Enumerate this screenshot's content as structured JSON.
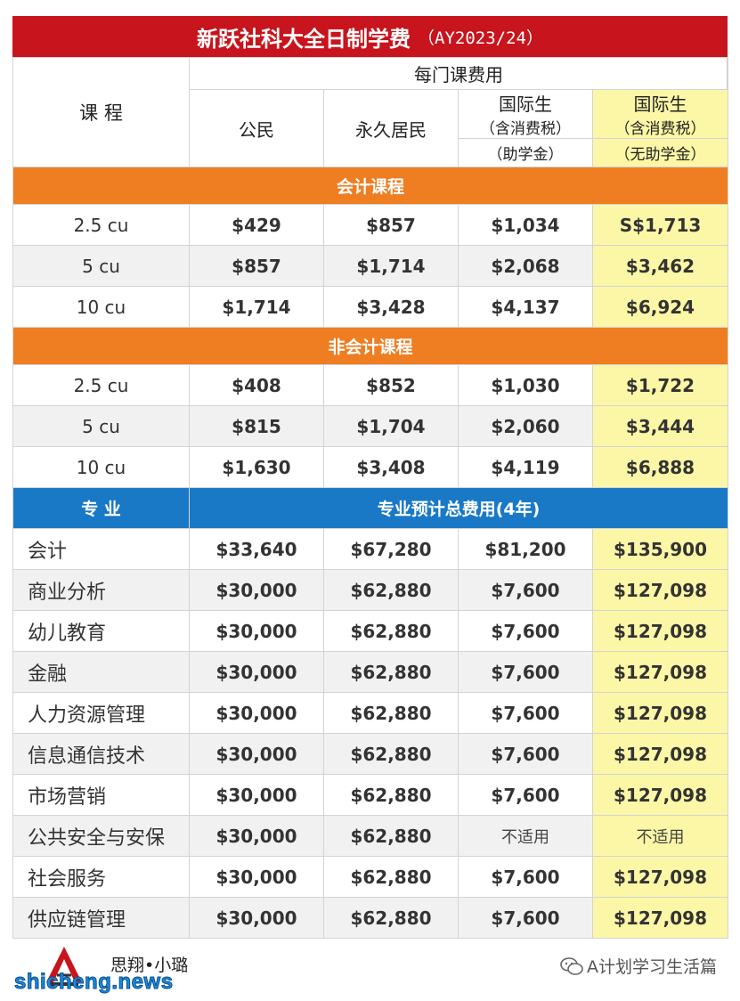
{
  "title": {
    "main": "新跃社科大全日制学费",
    "sub": "（AY2023/24）"
  },
  "header": {
    "course": "课 程",
    "per_course_fee": "每门课费用",
    "citizen": "公民",
    "pr": "永久居民",
    "intl_subsidized": {
      "line1": "国际生",
      "line2": "（含消费税）",
      "line3": "（助学金）"
    },
    "intl_unsubsidized": {
      "line1": "国际生",
      "line2": "（含消费税）",
      "line3": "（无助学金）"
    }
  },
  "accounting": {
    "band": "会计课程",
    "rows": [
      {
        "name": "2.5 cu",
        "citizen": "$429",
        "pr": "$857",
        "intl_sub": "$1,034",
        "intl_unsub": "S$1,713"
      },
      {
        "name": "5 cu",
        "citizen": "$857",
        "pr": "$1,714",
        "intl_sub": "$2,068",
        "intl_unsub": "$3,462"
      },
      {
        "name": "10 cu",
        "citizen": "$1,714",
        "pr": "$3,428",
        "intl_sub": "$4,137",
        "intl_unsub": "$6,924"
      }
    ]
  },
  "non_accounting": {
    "band": "非会计课程",
    "rows": [
      {
        "name": "2.5 cu",
        "citizen": "$408",
        "pr": "$852",
        "intl_sub": "$1,030",
        "intl_unsub": "$1,722"
      },
      {
        "name": "5 cu",
        "citizen": "$815",
        "pr": "$1,704",
        "intl_sub": "$2,060",
        "intl_unsub": "$3,444"
      },
      {
        "name": "10 cu",
        "citizen": "$1,630",
        "pr": "$3,408",
        "intl_sub": "$4,119",
        "intl_unsub": "$6,888"
      }
    ]
  },
  "majors": {
    "label": "专 业",
    "band": "专业预计总费用(4年)",
    "rows": [
      {
        "name": "会计",
        "citizen": "$33,640",
        "pr": "$67,280",
        "intl_sub": "$81,200",
        "intl_unsub": "$135,900"
      },
      {
        "name": "商业分析",
        "citizen": "$30,000",
        "pr": "$62,880",
        "intl_sub": "$7,600",
        "intl_unsub": "$127,098"
      },
      {
        "name": "幼儿教育",
        "citizen": "$30,000",
        "pr": "$62,880",
        "intl_sub": "$7,600",
        "intl_unsub": "$127,098"
      },
      {
        "name": "金融",
        "citizen": "$30,000",
        "pr": "$62,880",
        "intl_sub": "$7,600",
        "intl_unsub": "$127,098"
      },
      {
        "name": "人力资源管理",
        "citizen": "$30,000",
        "pr": "$62,880",
        "intl_sub": "$7,600",
        "intl_unsub": "$127,098"
      },
      {
        "name": "信息通信技术",
        "citizen": "$30,000",
        "pr": "$62,880",
        "intl_sub": "$7,600",
        "intl_unsub": "$127,098"
      },
      {
        "name": "市场营销",
        "citizen": "$30,000",
        "pr": "$62,880",
        "intl_sub": "$7,600",
        "intl_unsub": "$127,098"
      },
      {
        "name": "公共安全与安保",
        "citizen": "$30,000",
        "pr": "$62,880",
        "intl_sub": "不适用",
        "intl_unsub": "不适用"
      },
      {
        "name": "社会服务",
        "citizen": "$30,000",
        "pr": "$62,880",
        "intl_sub": "$7,600",
        "intl_unsub": "$127,098"
      },
      {
        "name": "供应链管理",
        "citizen": "$30,000",
        "pr": "$62,880",
        "intl_sub": "$7,600",
        "intl_unsub": "$127,098"
      }
    ]
  },
  "footer": {
    "brand": "思翔•小璐",
    "watermark": "shicheng.news",
    "account": "A计划学习生活篇"
  },
  "colors": {
    "title": "#c8141c",
    "orange_band": "#ef7d22",
    "blue_band": "#1a79c6",
    "highlight": "#fbf7a6"
  }
}
